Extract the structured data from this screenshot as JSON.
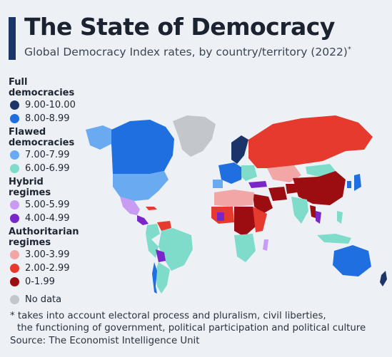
{
  "header": {
    "title": "The State of Democracy",
    "subtitle": "Global Democracy Index rates, by country/territory (2022)",
    "subtitle_marker": "*"
  },
  "legend": {
    "groups": [
      {
        "title": "Full democracies",
        "items": [
          {
            "label": "9.00-10.00",
            "color": "#1b3569"
          },
          {
            "label": "8.00-8.99",
            "color": "#1f6fe0"
          }
        ]
      },
      {
        "title": "Flawed democracies",
        "items": [
          {
            "label": "7.00-7.99",
            "color": "#6aaaf0"
          },
          {
            "label": "6.00-6.99",
            "color": "#7fdccb"
          }
        ]
      },
      {
        "title": "Hybrid regimes",
        "items": [
          {
            "label": "5.00-5.99",
            "color": "#c79cf2"
          },
          {
            "label": "4.00-4.99",
            "color": "#7a27c9"
          }
        ]
      },
      {
        "title": "Authoritarian regimes",
        "items": [
          {
            "label": "3.00-3.99",
            "color": "#f2a6a6"
          },
          {
            "label": "2.00-2.99",
            "color": "#e63a2e"
          },
          {
            "label": "0-1.99",
            "color": "#9c0d12"
          }
        ]
      },
      {
        "title": "",
        "items": [
          {
            "label": "No data",
            "color": "#c3c6ca"
          }
        ]
      }
    ]
  },
  "colors": {
    "full_high": "#1b3569",
    "full_low": "#1f6fe0",
    "flawed_high": "#6aaaf0",
    "flawed_low": "#7fdccb",
    "hybrid_high": "#c79cf2",
    "hybrid_low": "#7a27c9",
    "auth_high": "#f2a6a6",
    "auth_mid": "#e63a2e",
    "auth_low": "#9c0d12",
    "no_data": "#c3c6ca"
  },
  "footnote": {
    "line1": "* takes into account electoral process and pluralism, civil liberties,",
    "line2": "the functioning of government, political participation and political culture"
  },
  "source": "Source: The Economist Intelligence Unit"
}
